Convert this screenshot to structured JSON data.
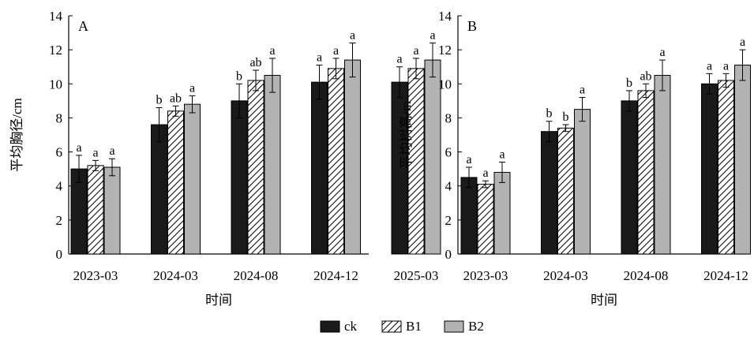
{
  "figure": {
    "legend": {
      "items": [
        {
          "label": "ck",
          "pattern": "solid-black"
        },
        {
          "label": "B1",
          "pattern": "hatch-white"
        },
        {
          "label": "B2",
          "pattern": "solid-gray"
        }
      ]
    },
    "colors": {
      "ck": "#1a1a1a",
      "B1": "#ffffff",
      "B2": "#b3b3b3",
      "axis": "#000000"
    }
  },
  "chart_data": [
    {
      "type": "bar",
      "panel_label": "A",
      "title": "",
      "xlabel": "时间",
      "ylabel": "平均胸径/cm",
      "ylim": [
        0,
        14
      ],
      "yticks": [
        0,
        2,
        4,
        6,
        8,
        10,
        12,
        14
      ],
      "categories": [
        "2023-03",
        "2024-03",
        "2024-08",
        "2024-12",
        "2025-03"
      ],
      "series": [
        {
          "name": "ck",
          "values": [
            5.0,
            7.6,
            9.0,
            10.1,
            10.1
          ],
          "errors": [
            0.8,
            1.0,
            1.0,
            1.0,
            0.9
          ],
          "letters": [
            "a",
            "b",
            "b",
            "a",
            "a"
          ]
        },
        {
          "name": "B1",
          "values": [
            5.2,
            8.4,
            10.2,
            10.9,
            10.9
          ],
          "errors": [
            0.3,
            0.3,
            0.6,
            0.6,
            0.6
          ],
          "letters": [
            "a",
            "ab",
            "ab",
            "a",
            "a"
          ]
        },
        {
          "name": "B2",
          "values": [
            5.1,
            8.8,
            10.5,
            11.4,
            11.4
          ],
          "errors": [
            0.5,
            0.5,
            1.0,
            1.0,
            1.0
          ],
          "letters": [
            "a",
            "a",
            "a",
            "a",
            "a"
          ]
        }
      ],
      "legend": "bottom-center",
      "grid": false
    },
    {
      "type": "bar",
      "panel_label": "B",
      "title": "",
      "xlabel": "时间",
      "ylabel": "平均树高/m",
      "ylim": [
        0,
        14
      ],
      "yticks": [
        0,
        2,
        4,
        6,
        8,
        10,
        12,
        14
      ],
      "categories": [
        "2023-03",
        "2024-03",
        "2024-08",
        "2024-12",
        "2025-03"
      ],
      "series": [
        {
          "name": "ck",
          "values": [
            4.5,
            7.2,
            9.0,
            10.0,
            10.0
          ],
          "errors": [
            0.6,
            0.6,
            0.6,
            0.6,
            0.6
          ],
          "letters": [
            "a",
            "b",
            "b",
            "a",
            "a"
          ]
        },
        {
          "name": "B1",
          "values": [
            4.1,
            7.4,
            9.6,
            10.2,
            10.2
          ],
          "errors": [
            0.2,
            0.2,
            0.4,
            0.4,
            0.4
          ],
          "letters": [
            "a",
            "b",
            "ab",
            "a",
            "a"
          ]
        },
        {
          "name": "B2",
          "values": [
            4.8,
            8.5,
            10.5,
            11.1,
            11.1
          ],
          "errors": [
            0.6,
            0.7,
            0.9,
            0.9,
            0.9
          ],
          "letters": [
            "a",
            "a",
            "a",
            "a",
            "a"
          ]
        }
      ],
      "legend": "bottom-center",
      "grid": false
    }
  ]
}
